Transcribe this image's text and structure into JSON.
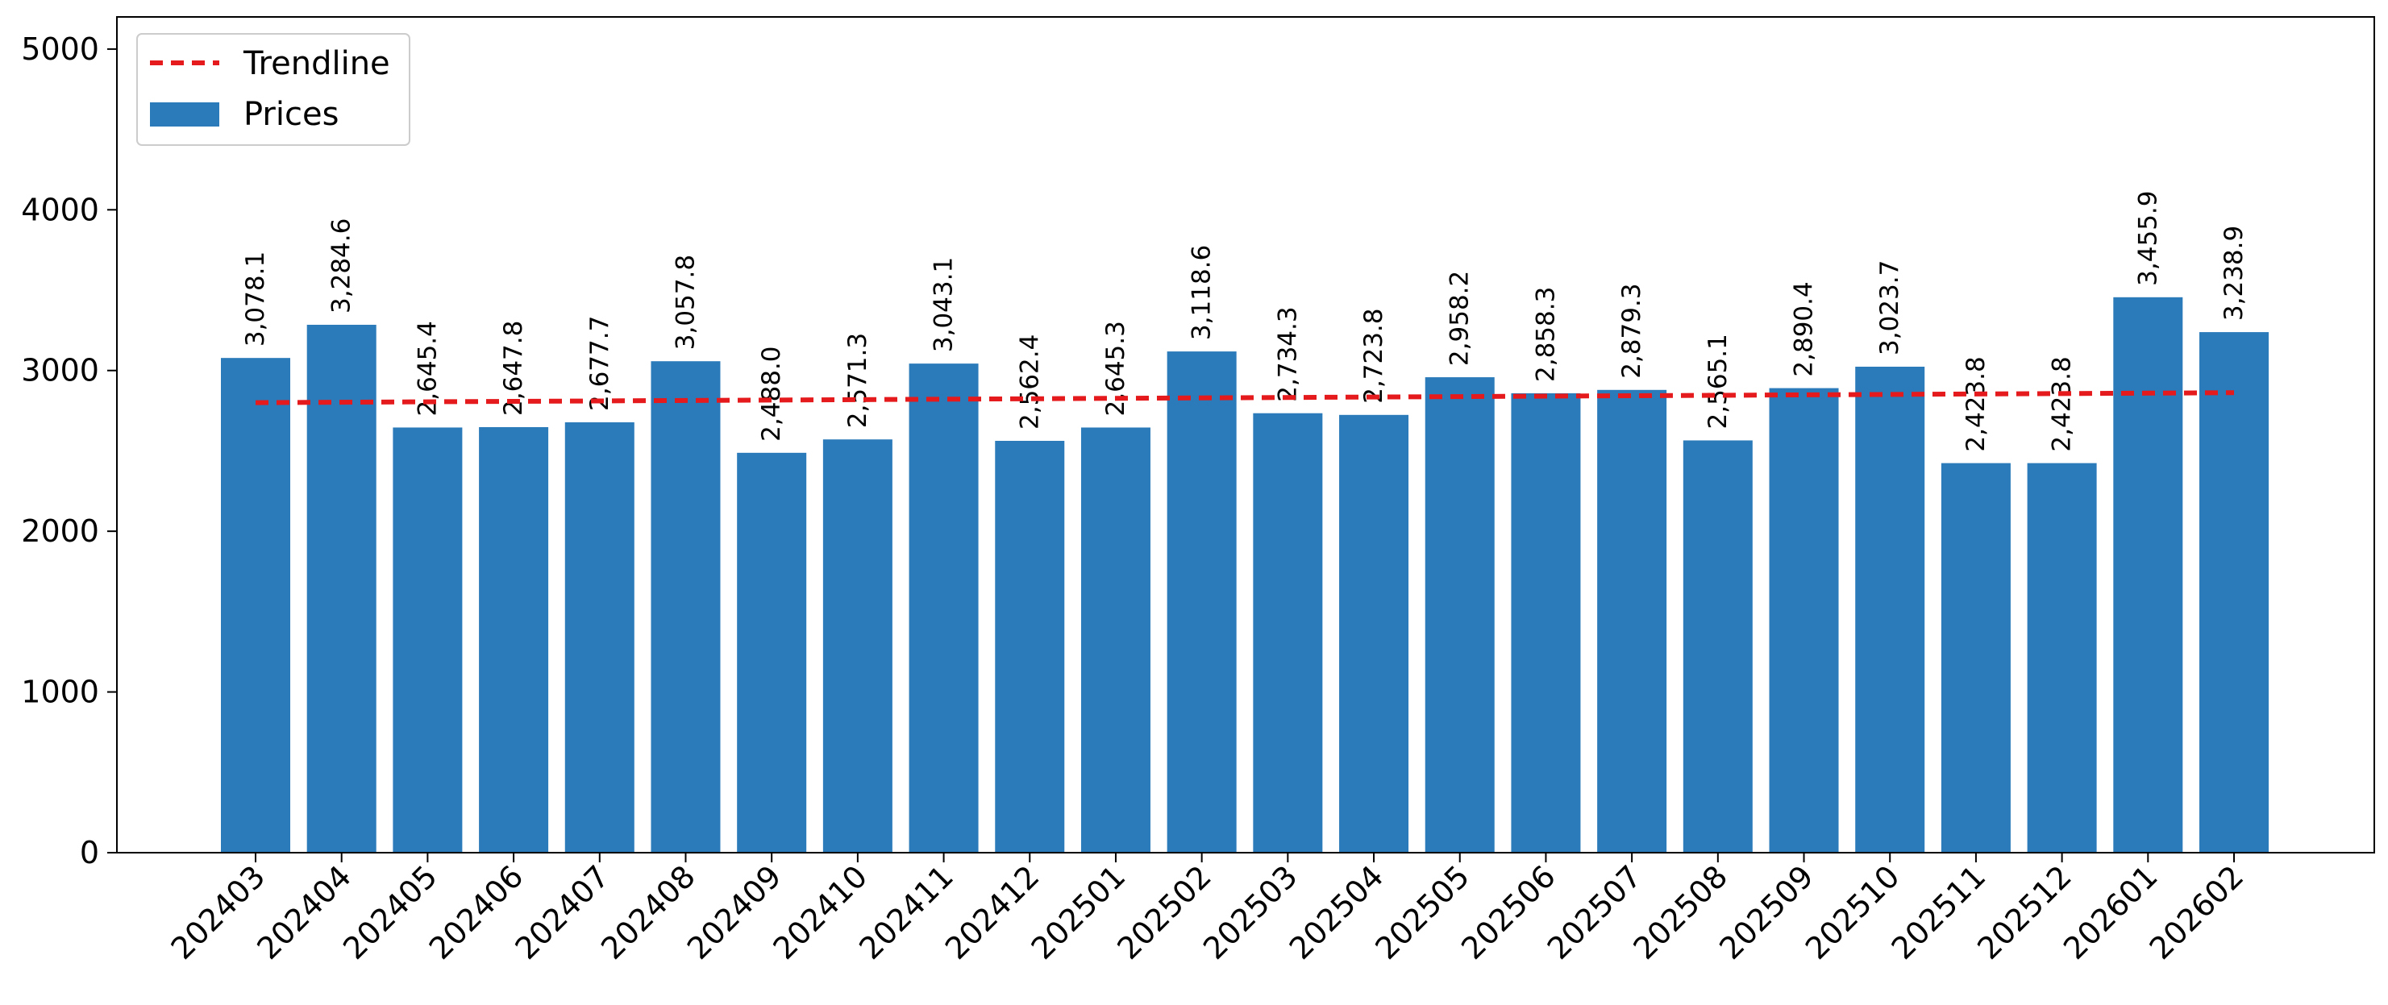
{
  "chart_data": {
    "type": "bar",
    "title": "",
    "xlabel": "",
    "ylabel": "",
    "categories": [
      "202403",
      "202404",
      "202405",
      "202406",
      "202407",
      "202408",
      "202409",
      "202410",
      "202411",
      "202412",
      "202501",
      "202502",
      "202503",
      "202504",
      "202505",
      "202506",
      "202507",
      "202508",
      "202509",
      "202510",
      "202511",
      "202512",
      "202601",
      "202602"
    ],
    "series": [
      {
        "name": "Prices",
        "color": "#2b7bba",
        "values": [
          3078.1,
          3284.6,
          2645.4,
          2647.8,
          2677.7,
          3057.8,
          2488.0,
          2571.3,
          3043.1,
          2562.4,
          2645.3,
          3118.6,
          2734.3,
          2723.8,
          2958.2,
          2858.3,
          2879.3,
          2565.1,
          2890.4,
          3023.7,
          2423.8,
          2423.8,
          3455.9,
          3238.9
        ],
        "labels": [
          "3,078.1",
          "3,284.6",
          "2,645.4",
          "2,647.8",
          "2,677.7",
          "3,057.8",
          "2,488.0",
          "2,571.3",
          "3,043.1",
          "2,562.4",
          "2,645.3",
          "3,118.6",
          "2,734.3",
          "2,723.8",
          "2,958.2",
          "2,858.3",
          "2,879.3",
          "2,565.1",
          "2,890.4",
          "3,023.7",
          "2,423.8",
          "2,423.8",
          "3,455.9",
          "3,238.9"
        ]
      }
    ],
    "trendline": {
      "name": "Trendline",
      "color": "#e41a1c",
      "style": "dashed",
      "start": 2800,
      "end": 2862
    },
    "ylim": [
      0,
      5200
    ],
    "yticks": [
      0,
      1000,
      2000,
      3000,
      4000,
      5000
    ],
    "ytick_labels": [
      "0",
      "1000",
      "2000",
      "3000",
      "4000",
      "5000"
    ],
    "grid": false,
    "legend": {
      "placement": "top-left",
      "entries": [
        "Trendline",
        "Prices"
      ]
    }
  }
}
